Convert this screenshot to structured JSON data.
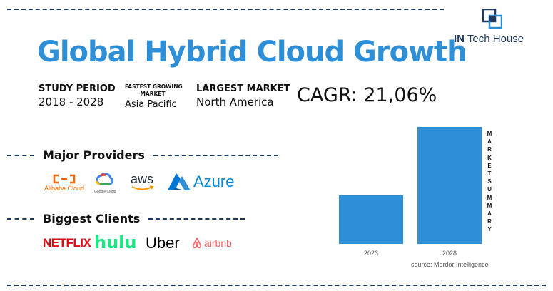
{
  "header": {
    "title": "Global Hybrid Cloud Growth",
    "logo_text_bold": "IN",
    "logo_text_rest": " Tech House"
  },
  "stats": {
    "study_period_label": "STUDY PERIOD",
    "study_period_value": "2018 - 2028",
    "fastest_market_label_1": "FASTEST GROWING",
    "fastest_market_label_2": "MARKET",
    "fastest_market_value": "Asia Pacific",
    "largest_market_label": "LARGEST MARKET",
    "largest_market_value": "North America",
    "cagr": "CAGR: 21,06%"
  },
  "providers": {
    "heading": "Major Providers",
    "items": [
      {
        "name": "Alibaba Cloud",
        "icon": "alibaba-cloud-logo",
        "color": "#ff6a00"
      },
      {
        "name": "Google Cloud",
        "icon": "google-cloud-logo",
        "color": "#4285f4"
      },
      {
        "name": "aws",
        "icon": "aws-logo",
        "color": "#232f3e"
      },
      {
        "name": "Azure",
        "icon": "azure-logo",
        "color": "#0089d6"
      }
    ]
  },
  "clients": {
    "heading": "Biggest Clients",
    "items": [
      {
        "name": "NETFLIX",
        "color": "#e50914"
      },
      {
        "name": "hulu",
        "color": "#1ce783"
      },
      {
        "name": "Uber",
        "color": "#000000"
      },
      {
        "name": "airbnb",
        "color": "#ff5a5f"
      }
    ]
  },
  "chart_data": {
    "type": "bar",
    "categories": [
      "2023",
      "2028"
    ],
    "values": [
      1,
      2.4
    ],
    "bar_color": "#2f8fd6",
    "side_label": "MARKET SUMMARY",
    "source": "source: Mordor Intelligence"
  },
  "colors": {
    "accent": "#2f8fd6",
    "dash": "#1e3a5f"
  }
}
